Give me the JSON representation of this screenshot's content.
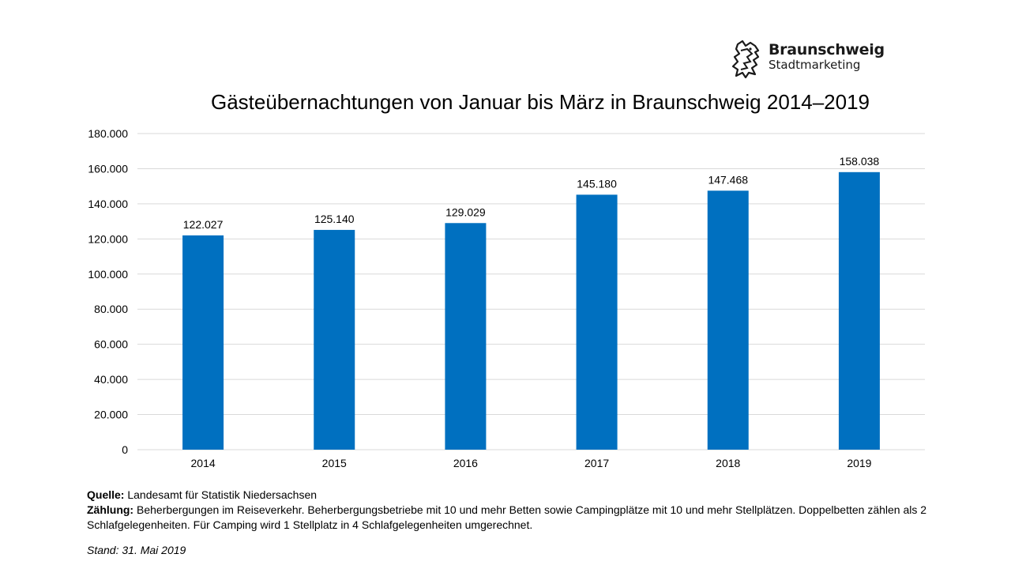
{
  "logo": {
    "brand": "Braunschweig",
    "sub": "Stadtmarketing",
    "icon": "lion-icon"
  },
  "colors": {
    "bar": "#0070C0",
    "grid": "#D9D9D9"
  },
  "chart_data": {
    "type": "bar",
    "title": "Gästeübernachtungen von Januar bis März in Braunschweig 2014–2019",
    "xlabel": "",
    "ylabel": "",
    "categories": [
      "2014",
      "2015",
      "2016",
      "2017",
      "2018",
      "2019"
    ],
    "values": [
      122027,
      125140,
      129029,
      145180,
      147468,
      158038
    ],
    "value_labels": [
      "122.027",
      "125.140",
      "129.029",
      "145.180",
      "147.468",
      "158.038"
    ],
    "ylim": [
      0,
      180000
    ],
    "yticks": [
      "0",
      "20.000",
      "40.000",
      "60.000",
      "80.000",
      "100.000",
      "120.000",
      "140.000",
      "160.000",
      "180.000"
    ],
    "grid": true,
    "legend": "none"
  },
  "notes": {
    "source_label": "Quelle:",
    "source_text": " Landesamt für Statistik Niedersachsen",
    "count_label": "Zählung:",
    "count_text": " Beherbergungen im Reiseverkehr. Beherbergungsbetriebe mit 10 und mehr Betten sowie Campingplätze mit 10 und mehr Stellplätzen. Doppelbetten zählen als 2 Schlafgelegenheiten. Für Camping wird 1 Stellplatz in 4 Schlafgelegenheiten umgerechnet.",
    "stand": "Stand: 31. Mai 2019"
  }
}
